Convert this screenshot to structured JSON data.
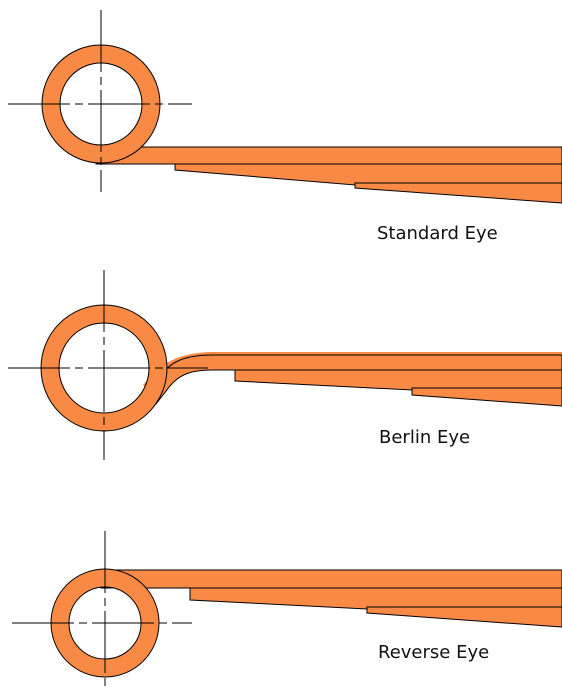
{
  "diagram": {
    "colors": {
      "fill": "#F98A45",
      "outline": "#000000",
      "centerline": "#000000"
    },
    "labels": {
      "standard": "Standard Eye",
      "berlin": "Berlin Eye",
      "reverse": "Reverse Eye"
    }
  }
}
